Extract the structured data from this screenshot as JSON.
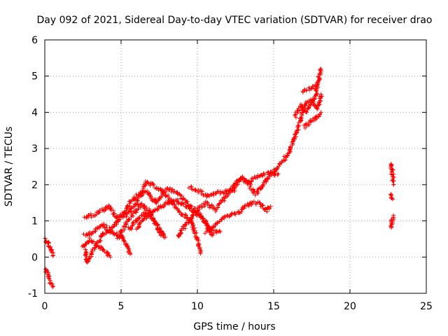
{
  "chart_data": {
    "type": "scatter",
    "title": "Day 092 of 2021, Sidereal Day-to-day VTEC variation (SDTVAR) for receiver drao",
    "xlabel": "GPS time / hours",
    "ylabel": "SDTVAR / TECUs",
    "xlim": [
      0,
      25
    ],
    "ylim": [
      -1,
      6
    ],
    "xticks": [
      0,
      5,
      10,
      15,
      20,
      25
    ],
    "yticks": [
      -1,
      0,
      1,
      2,
      3,
      4,
      5,
      6
    ],
    "grid": true,
    "marker": "+",
    "color": "#ff0000",
    "traces": [
      [
        [
          0.0,
          0.5
        ],
        [
          0.2,
          0.4
        ],
        [
          0.4,
          0.2
        ],
        [
          0.55,
          0.05
        ]
      ],
      [
        [
          0.0,
          -0.35
        ],
        [
          0.2,
          -0.45
        ],
        [
          0.35,
          -0.7
        ],
        [
          0.55,
          -0.8
        ]
      ],
      [
        [
          2.5,
          0.3
        ],
        [
          3.0,
          0.5
        ],
        [
          3.5,
          0.3
        ],
        [
          4.0,
          0.15
        ],
        [
          4.3,
          0.0
        ]
      ],
      [
        [
          2.6,
          0.6
        ],
        [
          3.2,
          0.7
        ],
        [
          3.8,
          0.9
        ],
        [
          4.3,
          0.7
        ],
        [
          5.0,
          0.6
        ],
        [
          5.4,
          0.3
        ],
        [
          5.6,
          0.1
        ]
      ],
      [
        [
          2.6,
          1.1
        ],
        [
          3.1,
          1.15
        ],
        [
          3.6,
          1.25
        ],
        [
          4.2,
          1.4
        ],
        [
          4.7,
          1.1
        ],
        [
          5.3,
          1.15
        ],
        [
          6.0,
          1.5
        ],
        [
          6.6,
          2.05
        ],
        [
          7.3,
          1.95
        ],
        [
          8.0,
          1.7
        ],
        [
          8.6,
          1.35
        ],
        [
          9.1,
          1.15
        ],
        [
          9.6,
          1.0
        ],
        [
          10.0,
          0.45
        ],
        [
          10.2,
          0.1
        ]
      ],
      [
        [
          2.6,
          0.25
        ],
        [
          2.8,
          -0.15
        ],
        [
          3.2,
          0.2
        ],
        [
          3.8,
          0.6
        ],
        [
          4.4,
          0.8
        ],
        [
          5.0,
          1.1
        ],
        [
          5.6,
          1.5
        ],
        [
          6.1,
          1.7
        ],
        [
          6.7,
          1.8
        ],
        [
          7.3,
          1.5
        ],
        [
          8.0,
          1.9
        ],
        [
          8.6,
          1.8
        ],
        [
          9.1,
          1.6
        ],
        [
          9.6,
          1.4
        ],
        [
          10.1,
          1.2
        ],
        [
          10.6,
          0.9
        ],
        [
          11.0,
          0.7
        ],
        [
          11.5,
          0.7
        ]
      ],
      [
        [
          4.8,
          0.5
        ],
        [
          5.3,
          0.9
        ],
        [
          5.8,
          1.2
        ],
        [
          6.3,
          1.45
        ],
        [
          6.8,
          1.3
        ],
        [
          7.3,
          0.9
        ],
        [
          7.6,
          0.6
        ]
      ],
      [
        [
          6.0,
          0.8
        ],
        [
          6.6,
          1.1
        ],
        [
          7.3,
          1.3
        ],
        [
          8.0,
          1.5
        ],
        [
          8.6,
          1.55
        ],
        [
          9.1,
          1.45
        ],
        [
          9.6,
          1.3
        ],
        [
          10.3,
          1.1
        ],
        [
          10.7,
          0.8
        ],
        [
          11.0,
          0.6
        ]
      ],
      [
        [
          5.5,
          0.75
        ],
        [
          6.0,
          1.0
        ],
        [
          6.5,
          1.2
        ],
        [
          7.0,
          1.1
        ],
        [
          7.5,
          0.8
        ],
        [
          7.9,
          0.55
        ]
      ],
      [
        [
          8.7,
          0.55
        ],
        [
          9.1,
          0.8
        ],
        [
          9.6,
          1.1
        ],
        [
          10.1,
          1.35
        ],
        [
          10.6,
          1.5
        ],
        [
          11.2,
          1.3
        ],
        [
          11.7,
          1.6
        ],
        [
          12.3,
          1.95
        ],
        [
          12.9,
          2.2
        ],
        [
          13.4,
          2.1
        ],
        [
          13.9,
          2.2
        ],
        [
          14.4,
          2.3
        ],
        [
          15.0,
          2.35
        ],
        [
          15.5,
          2.6
        ],
        [
          16.0,
          2.9
        ],
        [
          16.4,
          3.3
        ],
        [
          16.8,
          3.9
        ],
        [
          17.2,
          4.3
        ],
        [
          17.7,
          4.4
        ],
        [
          18.1,
          5.2
        ]
      ],
      [
        [
          9.5,
          1.95
        ],
        [
          10.0,
          1.85
        ],
        [
          10.6,
          1.7
        ],
        [
          11.1,
          1.75
        ],
        [
          11.8,
          1.8
        ],
        [
          12.3,
          1.8
        ],
        [
          12.8,
          2.2
        ],
        [
          13.3,
          2.05
        ],
        [
          13.8,
          1.75
        ],
        [
          14.3,
          2.0
        ],
        [
          14.8,
          2.3
        ],
        [
          15.3,
          2.3
        ]
      ],
      [
        [
          10.5,
          0.7
        ],
        [
          11.0,
          0.85
        ],
        [
          11.6,
          1.05
        ],
        [
          12.1,
          1.15
        ],
        [
          12.6,
          1.2
        ],
        [
          13.1,
          1.4
        ],
        [
          13.6,
          1.5
        ],
        [
          14.1,
          1.5
        ],
        [
          14.5,
          1.3
        ],
        [
          14.8,
          1.4
        ]
      ],
      [
        [
          16.4,
          3.9
        ],
        [
          16.8,
          4.2
        ],
        [
          17.1,
          4.0
        ],
        [
          17.5,
          4.3
        ],
        [
          17.9,
          4.1
        ],
        [
          18.1,
          4.5
        ]
      ],
      [
        [
          17.0,
          3.6
        ],
        [
          17.4,
          3.75
        ],
        [
          17.8,
          3.85
        ],
        [
          18.1,
          4.0
        ]
      ],
      [
        [
          16.9,
          4.6
        ],
        [
          17.3,
          4.65
        ],
        [
          17.7,
          4.7
        ],
        [
          18.0,
          4.9
        ]
      ],
      [
        [
          22.7,
          2.6
        ],
        [
          22.75,
          2.4
        ],
        [
          22.85,
          2.0
        ]
      ],
      [
        [
          22.7,
          1.75
        ],
        [
          22.8,
          1.6
        ]
      ],
      [
        [
          22.7,
          0.8
        ],
        [
          22.75,
          1.0
        ],
        [
          22.85,
          1.15
        ]
      ]
    ]
  }
}
